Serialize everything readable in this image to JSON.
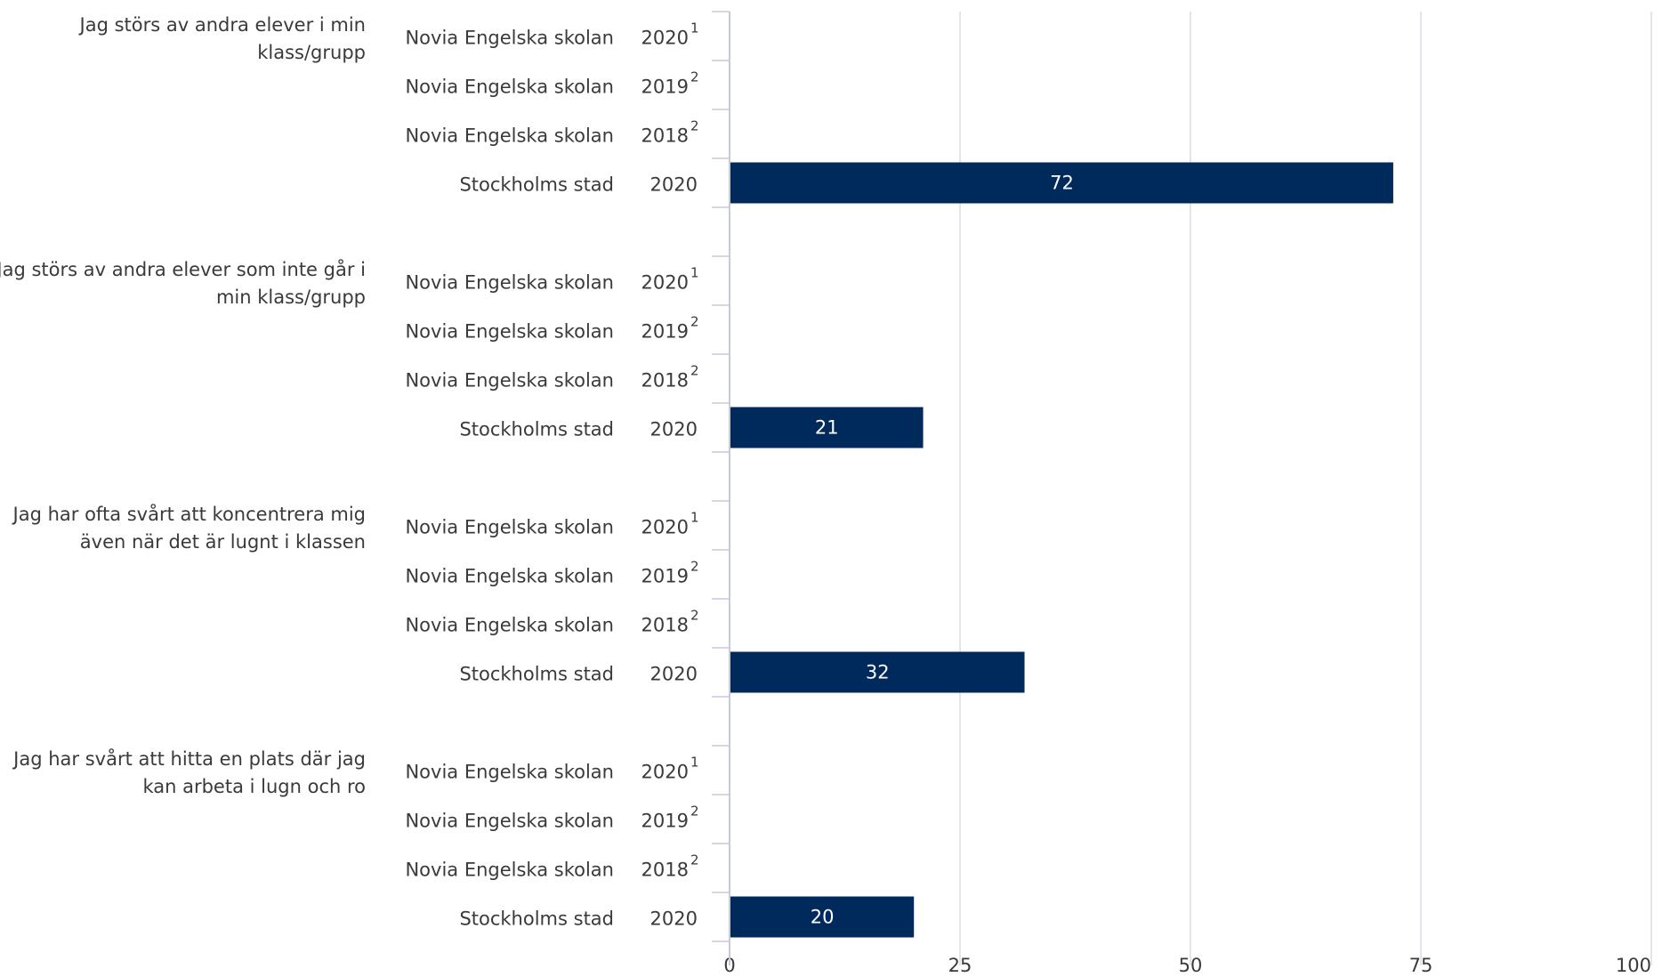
{
  "colors": {
    "bar": "#002a5c",
    "grid": "#d9dde5",
    "axis": "#c5cbd6",
    "text": "#3a3a3a",
    "value_text": "#ffffff"
  },
  "chart_data": {
    "type": "bar",
    "orientation": "horizontal",
    "title": "",
    "xlabel": "",
    "ylabel": "",
    "xlim": [
      0,
      100
    ],
    "x_ticks": [
      "0",
      "25",
      "50",
      "75",
      "100"
    ],
    "grid": true,
    "groups": [
      {
        "label": "Jag störs av andra elever i min klass/grupp",
        "rows": [
          {
            "unit": "Novia Engelska skolan",
            "year": "2020",
            "note": "1",
            "value": null
          },
          {
            "unit": "Novia Engelska skolan",
            "year": "2019",
            "note": "2",
            "value": null
          },
          {
            "unit": "Novia Engelska skolan",
            "year": "2018",
            "note": "2",
            "value": null
          },
          {
            "unit": "Stockholms stad",
            "year": "2020",
            "note": "",
            "value": 72,
            "value_label": "72"
          }
        ]
      },
      {
        "label": "Jag störs av andra elever som inte går i min klass/grupp",
        "rows": [
          {
            "unit": "Novia Engelska skolan",
            "year": "2020",
            "note": "1",
            "value": null
          },
          {
            "unit": "Novia Engelska skolan",
            "year": "2019",
            "note": "2",
            "value": null
          },
          {
            "unit": "Novia Engelska skolan",
            "year": "2018",
            "note": "2",
            "value": null
          },
          {
            "unit": "Stockholms stad",
            "year": "2020",
            "note": "",
            "value": 21,
            "value_label": "21"
          }
        ]
      },
      {
        "label": "Jag har ofta svårt att koncentrera mig även när det är lugnt i klassen",
        "rows": [
          {
            "unit": "Novia Engelska skolan",
            "year": "2020",
            "note": "1",
            "value": null
          },
          {
            "unit": "Novia Engelska skolan",
            "year": "2019",
            "note": "2",
            "value": null
          },
          {
            "unit": "Novia Engelska skolan",
            "year": "2018",
            "note": "2",
            "value": null
          },
          {
            "unit": "Stockholms stad",
            "year": "2020",
            "note": "",
            "value": 32,
            "value_label": "32"
          }
        ]
      },
      {
        "label": "Jag har svårt att hitta en plats där jag kan arbeta i lugn och ro",
        "rows": [
          {
            "unit": "Novia Engelska skolan",
            "year": "2020",
            "note": "1",
            "value": null
          },
          {
            "unit": "Novia Engelska skolan",
            "year": "2019",
            "note": "2",
            "value": null
          },
          {
            "unit": "Novia Engelska skolan",
            "year": "2018",
            "note": "2",
            "value": null
          },
          {
            "unit": "Stockholms stad",
            "year": "2020",
            "note": "",
            "value": 20,
            "value_label": "20"
          }
        ]
      }
    ]
  }
}
